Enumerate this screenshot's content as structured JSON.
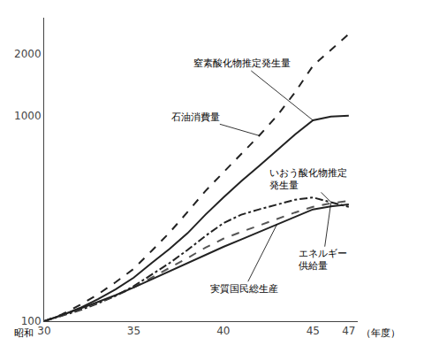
{
  "chart_data": {
    "type": "line",
    "x": [
      30,
      31,
      32,
      33,
      34,
      35,
      36,
      37,
      38,
      39,
      40,
      41,
      42,
      43,
      44,
      45,
      46,
      47
    ],
    "series": [
      {
        "color": "#222222",
        "line_style": "dashed",
        "values": [
          100,
          108,
          120,
          135,
          155,
          180,
          220,
          270,
          340,
          430,
          530,
          650,
          800,
          1000,
          1300,
          1750,
          2100,
          2500
        ]
      },
      {
        "color": "#222222",
        "line_style": "solid",
        "values": [
          100,
          107,
          116,
          128,
          143,
          163,
          192,
          225,
          268,
          330,
          400,
          480,
          570,
          680,
          810,
          950,
          990,
          1000
        ]
      },
      {
        "color": "#222222",
        "line_style": "dashdot",
        "values": [
          100,
          106,
          113,
          122,
          133,
          148,
          168,
          192,
          222,
          260,
          300,
          330,
          350,
          370,
          390,
          400,
          380,
          360
        ]
      },
      {
        "color": "#555555",
        "line_style": "dashed",
        "values": [
          100,
          107,
          114,
          123,
          133,
          146,
          163,
          181,
          203,
          228,
          252,
          272,
          293,
          315,
          338,
          360,
          375,
          385
        ]
      },
      {
        "color": "#222222",
        "line_style": "solid",
        "values": [
          100,
          107,
          115,
          124,
          134,
          146,
          160,
          175,
          192,
          210,
          230,
          250,
          272,
          297,
          323,
          350,
          362,
          370
        ]
      }
    ],
    "xlim": [
      30,
      47.5
    ],
    "xticks": [
      30,
      35,
      40,
      45,
      47
    ],
    "ylim": [
      100,
      3000
    ],
    "yticks": [
      100,
      1000,
      2000
    ],
    "log": "y",
    "grid": false,
    "xlabel": [
      "昭和",
      "（年度）"
    ],
    "annotations": [
      "石油消費量",
      "窒素酸化物推定発生量",
      "いおう酸化物推定\n発生量",
      "エネルギー\n供給量",
      "実質国民総生産"
    ]
  }
}
